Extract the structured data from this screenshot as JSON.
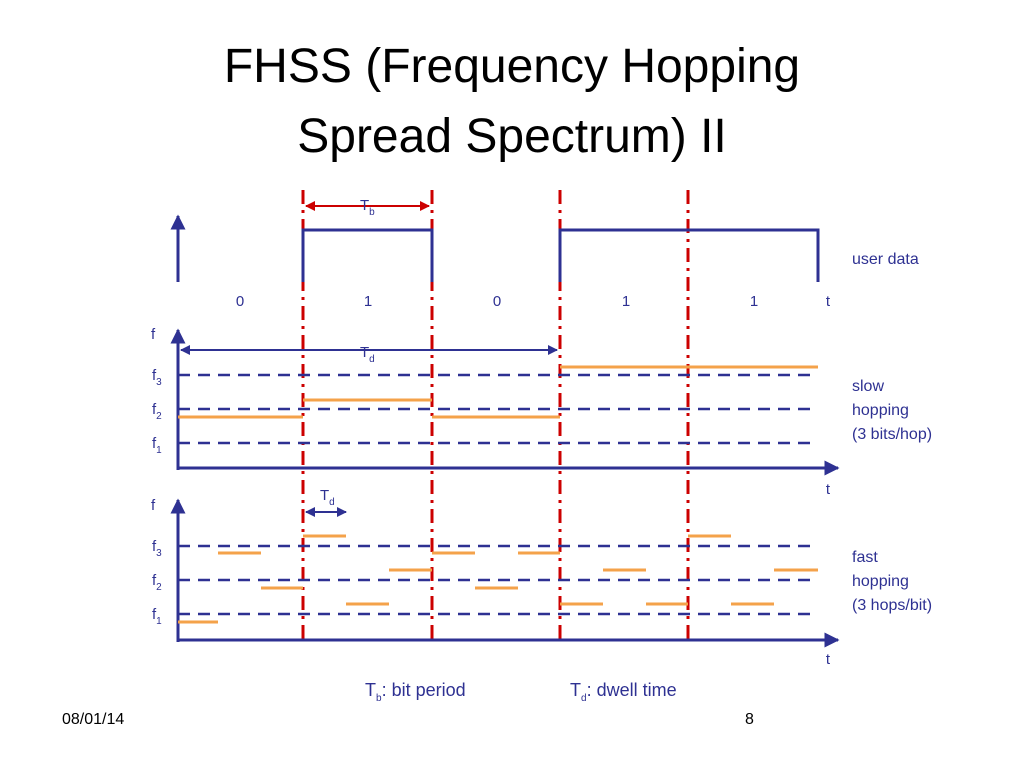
{
  "title": [
    "FHSS (Frequency Hopping",
    "Spread Spectrum) II"
  ],
  "user_data": {
    "period": {
      "base": "T",
      "sub": "b"
    },
    "bits": [
      "0",
      "1",
      "0",
      "1",
      "1"
    ],
    "axis": "t",
    "label": "user data"
  },
  "slow": {
    "axis_y": "f",
    "dwell": {
      "base": "T",
      "sub": "d"
    },
    "freqs": [
      {
        "base": "f",
        "sub": "3"
      },
      {
        "base": "f",
        "sub": "2"
      },
      {
        "base": "f",
        "sub": "1"
      }
    ],
    "axis": "t",
    "label": [
      "slow",
      "hopping",
      "(3 bits/hop)"
    ]
  },
  "fast": {
    "axis_y": "f",
    "dwell": {
      "base": "T",
      "sub": "d"
    },
    "freqs": [
      {
        "base": "f",
        "sub": "3"
      },
      {
        "base": "f",
        "sub": "2"
      },
      {
        "base": "f",
        "sub": "1"
      }
    ],
    "axis": "t",
    "label": [
      "fast",
      "hopping",
      "(3 hops/bit)"
    ]
  },
  "legend": [
    {
      "base": "T",
      "sub": "b",
      "text": ": bit period"
    },
    {
      "base": "T",
      "sub": "d",
      "text": ": dwell time"
    }
  ],
  "footer": {
    "date": "08/01/14",
    "page": "8"
  }
}
